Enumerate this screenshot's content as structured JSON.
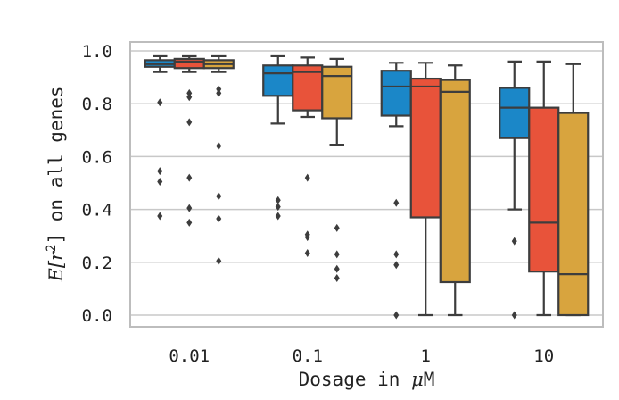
{
  "chart_data": {
    "type": "box",
    "xlabel_prefix": "Dosage in ",
    "xlabel_unit_greek": "μ",
    "xlabel_unit_rest": "M",
    "ylabel_pre": "E[",
    "ylabel_var": "r",
    "ylabel_sup": "2",
    "ylabel_post": "] on all genes",
    "ylim": [
      -0.05,
      1.04
    ],
    "yticks": [
      "0.0",
      "0.2",
      "0.4",
      "0.6",
      "0.8",
      "1.0"
    ],
    "categories": [
      "0.01",
      "0.1",
      "1",
      "10"
    ],
    "grid": true,
    "series_colors": [
      "#1b87c8",
      "#e8533a",
      "#d8a43e"
    ],
    "groups": [
      {
        "category": "0.01",
        "boxes": [
          {
            "whislo": 0.92,
            "q1": 0.94,
            "med": 0.95,
            "q3": 0.965,
            "whishi": 0.98,
            "fliers": [
              0.805,
              0.545,
              0.505,
              0.375
            ]
          },
          {
            "whislo": 0.92,
            "q1": 0.935,
            "med": 0.96,
            "q3": 0.97,
            "whishi": 0.98,
            "fliers": [
              0.84,
              0.825,
              0.73,
              0.52,
              0.405,
              0.35
            ]
          },
          {
            "whislo": 0.92,
            "q1": 0.935,
            "med": 0.95,
            "q3": 0.965,
            "whishi": 0.98,
            "fliers": [
              0.855,
              0.84,
              0.64,
              0.45,
              0.365,
              0.205
            ]
          }
        ]
      },
      {
        "category": "0.1",
        "boxes": [
          {
            "whislo": 0.725,
            "q1": 0.83,
            "med": 0.915,
            "q3": 0.945,
            "whishi": 0.98,
            "fliers": [
              0.435,
              0.41,
              0.375
            ]
          },
          {
            "whislo": 0.75,
            "q1": 0.775,
            "med": 0.92,
            "q3": 0.945,
            "whishi": 0.975,
            "fliers": [
              0.52,
              0.305,
              0.295,
              0.235
            ]
          },
          {
            "whislo": 0.645,
            "q1": 0.745,
            "med": 0.905,
            "q3": 0.94,
            "whishi": 0.97,
            "fliers": [
              0.33,
              0.23,
              0.175,
              0.14
            ]
          }
        ]
      },
      {
        "category": "1",
        "boxes": [
          {
            "whislo": 0.715,
            "q1": 0.755,
            "med": 0.865,
            "q3": 0.925,
            "whishi": 0.955,
            "fliers": [
              0.425,
              0.23,
              0.19,
              0.0
            ]
          },
          {
            "whislo": 0.0,
            "q1": 0.37,
            "med": 0.865,
            "q3": 0.895,
            "whishi": 0.955,
            "fliers": []
          },
          {
            "whislo": 0.0,
            "q1": 0.125,
            "med": 0.845,
            "q3": 0.89,
            "whishi": 0.945,
            "fliers": []
          }
        ]
      },
      {
        "category": "10",
        "boxes": [
          {
            "whislo": 0.4,
            "q1": 0.67,
            "med": 0.785,
            "q3": 0.86,
            "whishi": 0.96,
            "fliers": [
              0.28,
              0.0
            ]
          },
          {
            "whislo": 0.0,
            "q1": 0.165,
            "med": 0.35,
            "q3": 0.785,
            "whishi": 0.96,
            "fliers": []
          },
          {
            "whislo": 0.0,
            "q1": 0.0,
            "med": 0.155,
            "q3": 0.765,
            "whishi": 0.95,
            "fliers": []
          }
        ]
      }
    ]
  }
}
